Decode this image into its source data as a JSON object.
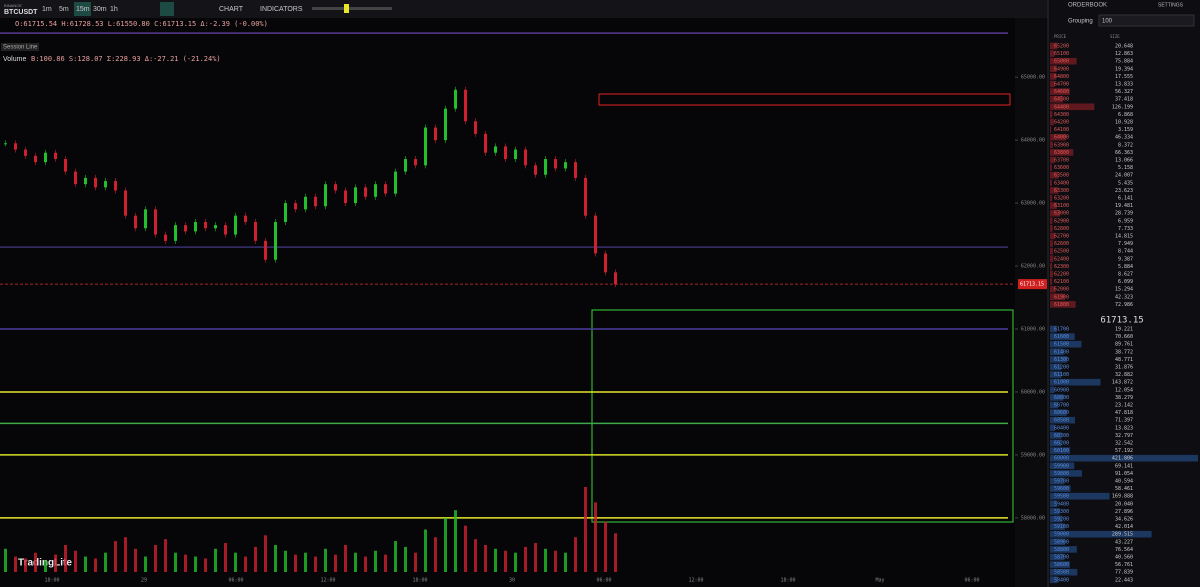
{
  "toolbar": {
    "exchange": "BINANCE",
    "symbol": "BTCUSDT",
    "timeframes": [
      "1m",
      "5m",
      "15m",
      "30m",
      "1h"
    ],
    "active_timeframe": 2,
    "chart_button": "CHART",
    "indicators_button": "INDICATORS"
  },
  "legend": {
    "ohlc": "O:61715.54 H:61728.53 L:61550.80 C:61713.15 Δ:-2.39 (-0.00%)",
    "session": "Session Line",
    "volume_label": "Volume",
    "volume_stats": "B:100.86 S:128.07 Σ:228.93 Δ:-27.21 (-21.24%)"
  },
  "brand": "TradingLite",
  "chart_data": {
    "type": "candlestick",
    "ylim": [
      65940,
      57140
    ],
    "yticks": [
      {
        "value": 65000,
        "label": "65000.00"
      },
      {
        "value": 64000,
        "label": "64000.00"
      },
      {
        "value": 63000,
        "label": "63000.00"
      },
      {
        "value": 62000,
        "label": "62000.00"
      },
      {
        "value": 61000,
        "label": "61000.00"
      },
      {
        "value": 60000,
        "label": "60000.00"
      },
      {
        "value": 59000,
        "label": "59000.00"
      },
      {
        "value": 58000,
        "label": "58000.00"
      }
    ],
    "xticks": [
      "18:00",
      "29",
      "06:00",
      "12:00",
      "18:00",
      "30",
      "06:00",
      "12:00",
      "18:00",
      "May",
      "06:00"
    ],
    "last_price": {
      "value": 61713.15,
      "label": "61713.15"
    },
    "closes": [
      63950,
      63850,
      63750,
      63650,
      63800,
      63700,
      63500,
      63300,
      63400,
      63250,
      63350,
      63200,
      62800,
      62600,
      62900,
      62500,
      62400,
      62650,
      62550,
      62700,
      62600,
      62650,
      62500,
      62800,
      62700,
      62400,
      62100,
      62700,
      63000,
      62900,
      63100,
      62950,
      63300,
      63200,
      63000,
      63250,
      63100,
      63300,
      63150,
      63500,
      63700,
      63600,
      64200,
      64000,
      64500,
      64800,
      64300,
      64100,
      63800,
      63900,
      63700,
      63850,
      63600,
      63450,
      63700,
      63550,
      63650,
      63400,
      62800,
      62200,
      61900,
      61713.15
    ],
    "volumes": [
      60,
      40,
      35,
      50,
      30,
      45,
      70,
      55,
      40,
      35,
      50,
      80,
      90,
      60,
      40,
      70,
      85,
      50,
      45,
      40,
      35,
      60,
      75,
      50,
      40,
      65,
      95,
      70,
      55,
      45,
      50,
      40,
      60,
      45,
      70,
      50,
      40,
      55,
      45,
      80,
      65,
      50,
      110,
      90,
      140,
      160,
      120,
      85,
      70,
      60,
      55,
      50,
      65,
      75,
      60,
      55,
      50,
      90,
      220,
      180,
      130,
      100
    ],
    "walls": [
      {
        "price": 60000,
        "color": "#e6e62a"
      },
      {
        "price": 59000,
        "color": "#d8e02a"
      },
      {
        "price": 58000,
        "color": "#e6e62a"
      },
      {
        "price": 59500,
        "color": "#3fa84a"
      },
      {
        "price": 61000,
        "color": "#4b3fa0"
      },
      {
        "price": 62300,
        "color": "#3a3070"
      },
      {
        "price": 65700,
        "color": "#5a3a90"
      }
    ]
  },
  "orderbook": {
    "title": "ORDERBOOK",
    "settings": "SETTINGS",
    "grouping_label": "Grouping",
    "grouping_value": "100",
    "price_header": "PRICE",
    "size_header": "SIZE",
    "mid": "61713.15",
    "asks": [
      [
        "65200",
        "20.648"
      ],
      [
        "65100",
        "12.863"
      ],
      [
        "65000",
        "75.884"
      ],
      [
        "64900",
        "19.394"
      ],
      [
        "64800",
        "17.555"
      ],
      [
        "64700",
        "13.833"
      ],
      [
        "64600",
        "56.327"
      ],
      [
        "64500",
        "37.418"
      ],
      [
        "64400",
        "126.199"
      ],
      [
        "64300",
        "6.868"
      ],
      [
        "64200",
        "10.928"
      ],
      [
        "64100",
        "3.159"
      ],
      [
        "64000",
        "46.334"
      ],
      [
        "63900",
        "8.372"
      ],
      [
        "63800",
        "66.363"
      ],
      [
        "63700",
        "13.066"
      ],
      [
        "63600",
        "5.158"
      ],
      [
        "63500",
        "24.007"
      ],
      [
        "63400",
        "5.435"
      ],
      [
        "63300",
        "23.623"
      ],
      [
        "63200",
        "6.141"
      ],
      [
        "63100",
        "19.481"
      ],
      [
        "63000",
        "28.739"
      ],
      [
        "62900",
        "6.959"
      ],
      [
        "62800",
        "7.733"
      ],
      [
        "62700",
        "14.815"
      ],
      [
        "62600",
        "7.949"
      ],
      [
        "62500",
        "8.744"
      ],
      [
        "62400",
        "9.387"
      ],
      [
        "62300",
        "5.884"
      ],
      [
        "62200",
        "8.627"
      ],
      [
        "62100",
        "6.099"
      ],
      [
        "62000",
        "15.294"
      ],
      [
        "61900",
        "42.323"
      ],
      [
        "61800",
        "72.986"
      ]
    ],
    "bids": [
      [
        "61700",
        "19.221"
      ],
      [
        "61600",
        "70.660"
      ],
      [
        "61500",
        "89.761"
      ],
      [
        "61400",
        "38.772"
      ],
      [
        "61300",
        "48.771"
      ],
      [
        "61200",
        "31.876"
      ],
      [
        "61100",
        "32.882"
      ],
      [
        "61000",
        "143.872"
      ],
      [
        "60900",
        "12.054"
      ],
      [
        "60800",
        "38.279"
      ],
      [
        "60700",
        "23.142"
      ],
      [
        "60600",
        "47.818"
      ],
      [
        "60500",
        "71.397"
      ],
      [
        "60400",
        "13.823"
      ],
      [
        "60300",
        "32.797"
      ],
      [
        "60200",
        "32.542"
      ],
      [
        "60100",
        "57.192"
      ],
      [
        "60000",
        "421.806"
      ],
      [
        "59900",
        "69.141"
      ],
      [
        "59800",
        "91.054"
      ],
      [
        "59700",
        "40.594"
      ],
      [
        "59600",
        "58.461"
      ],
      [
        "59500",
        "169.888"
      ],
      [
        "59400",
        "20.040"
      ],
      [
        "59300",
        "27.896"
      ],
      [
        "59200",
        "34.626"
      ],
      [
        "59100",
        "42.014"
      ],
      [
        "59000",
        "289.515"
      ],
      [
        "58900",
        "43.227"
      ],
      [
        "58800",
        "76.564"
      ],
      [
        "58700",
        "40.560"
      ],
      [
        "58600",
        "56.761"
      ],
      [
        "58500",
        "77.839"
      ],
      [
        "58400",
        "22.443"
      ]
    ]
  }
}
